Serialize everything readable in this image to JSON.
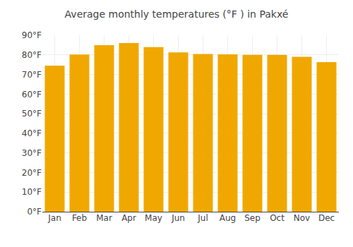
{
  "chart_data": {
    "type": "bar",
    "title": "Average monthly temperatures (°F ) in Pakxé",
    "categories": [
      "Jan",
      "Feb",
      "Mar",
      "Apr",
      "May",
      "Jun",
      "Jul",
      "Aug",
      "Sep",
      "Oct",
      "Nov",
      "Dec"
    ],
    "values": [
      74.5,
      80.2,
      85.0,
      86.0,
      84.0,
      81.3,
      80.5,
      80.3,
      80.0,
      80.0,
      79.0,
      76.3
    ],
    "color": "#F0A800",
    "ylim": [
      0,
      90
    ],
    "yticks": [
      {
        "value": 0,
        "label": "0°F"
      },
      {
        "value": 10,
        "label": "10°F"
      },
      {
        "value": 20,
        "label": "20°F"
      },
      {
        "value": 30,
        "label": "30°F"
      },
      {
        "value": 40,
        "label": "40°F"
      },
      {
        "value": 50,
        "label": "50°F"
      },
      {
        "value": 60,
        "label": "60°F"
      },
      {
        "value": 70,
        "label": "70°F"
      },
      {
        "value": 80,
        "label": "80°F"
      },
      {
        "value": 90,
        "label": "90°F"
      }
    ],
    "grid": true
  }
}
